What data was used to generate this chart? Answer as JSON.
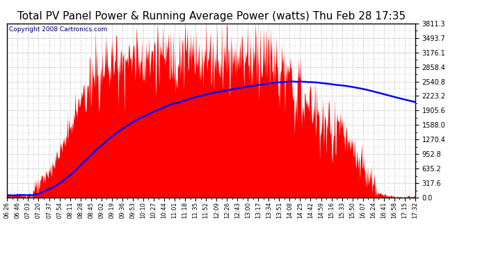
{
  "title": "Total PV Panel Power & Running Average Power (watts) Thu Feb 28 17:35",
  "copyright": "Copyright 2008 Cartronics.com",
  "x_labels": [
    "06:26",
    "06:46",
    "07:03",
    "07:20",
    "07:37",
    "07:54",
    "08:11",
    "08:28",
    "08:45",
    "09:02",
    "09:19",
    "09:36",
    "09:53",
    "10:10",
    "10:27",
    "10:44",
    "11:01",
    "11:18",
    "11:35",
    "11:52",
    "12:09",
    "12:26",
    "12:43",
    "13:00",
    "13:17",
    "13:34",
    "13:51",
    "14:08",
    "14:25",
    "14:42",
    "14:59",
    "15:16",
    "15:33",
    "15:50",
    "16:07",
    "16:24",
    "16:41",
    "16:58",
    "17:15",
    "17:32"
  ],
  "y_ticks": [
    0.0,
    317.6,
    635.2,
    952.8,
    1270.4,
    1588.0,
    1905.6,
    2223.2,
    2540.8,
    2858.4,
    3176.1,
    3493.7,
    3811.3
  ],
  "y_max": 3811.3,
  "background_color": "#ffffff",
  "plot_bg_color": "#ffffff",
  "bar_color": "#ff0000",
  "avg_line_color": "#0000ff",
  "grid_color": "#c8c8c8",
  "title_fontsize": 11,
  "copyright_fontsize": 6.5
}
